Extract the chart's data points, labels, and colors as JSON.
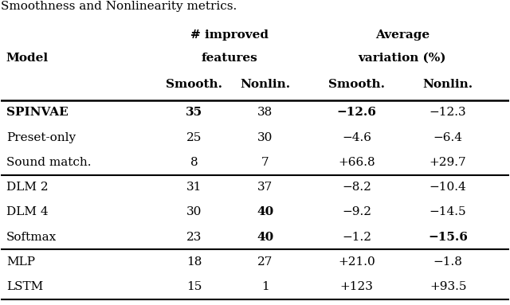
{
  "caption": "Smoothness and Nonlinearity metrics.",
  "col_headers_line1": [
    "",
    "# improved",
    "",
    "Average",
    ""
  ],
  "col_headers_line2": [
    "",
    "features",
    "",
    "variation (%)",
    ""
  ],
  "col_headers_line3": [
    "Model",
    "Smooth.",
    "Nonlin.",
    "Smooth.",
    "Nonlin."
  ],
  "rows": [
    {
      "model": "SPINVAE",
      "smooth_imp": "35",
      "nonlin_imp": "38",
      "smooth_var": "−12.6",
      "nonlin_var": "−12.3",
      "model_bold": true,
      "smooth_imp_bold": true,
      "nonlin_imp_bold": false,
      "smooth_var_bold": true,
      "nonlin_var_bold": false
    },
    {
      "model": "Preset-only",
      "smooth_imp": "25",
      "nonlin_imp": "30",
      "smooth_var": "−4.6",
      "nonlin_var": "−6.4",
      "model_bold": false,
      "smooth_imp_bold": false,
      "nonlin_imp_bold": false,
      "smooth_var_bold": false,
      "nonlin_var_bold": false
    },
    {
      "model": "Sound match.",
      "smooth_imp": "8",
      "nonlin_imp": "7",
      "smooth_var": "+66.8",
      "nonlin_var": "+29.7",
      "model_bold": false,
      "smooth_imp_bold": false,
      "nonlin_imp_bold": false,
      "smooth_var_bold": false,
      "nonlin_var_bold": false
    },
    {
      "model": "DLM 2",
      "smooth_imp": "31",
      "nonlin_imp": "37",
      "smooth_var": "−8.2",
      "nonlin_var": "−10.4",
      "model_bold": false,
      "smooth_imp_bold": false,
      "nonlin_imp_bold": false,
      "smooth_var_bold": false,
      "nonlin_var_bold": false
    },
    {
      "model": "DLM 4",
      "smooth_imp": "30",
      "nonlin_imp": "40",
      "smooth_var": "−9.2",
      "nonlin_var": "−14.5",
      "model_bold": false,
      "smooth_imp_bold": false,
      "nonlin_imp_bold": true,
      "smooth_var_bold": false,
      "nonlin_var_bold": false
    },
    {
      "model": "Softmax",
      "smooth_imp": "23",
      "nonlin_imp": "40",
      "smooth_var": "−1.2",
      "nonlin_var": "−15.6",
      "model_bold": false,
      "smooth_imp_bold": false,
      "nonlin_imp_bold": true,
      "smooth_var_bold": false,
      "nonlin_var_bold": true
    },
    {
      "model": "MLP",
      "smooth_imp": "18",
      "nonlin_imp": "27",
      "smooth_var": "+21.0",
      "nonlin_var": "−1.8",
      "model_bold": false,
      "smooth_imp_bold": false,
      "nonlin_imp_bold": false,
      "smooth_var_bold": false,
      "nonlin_var_bold": false
    },
    {
      "model": "LSTM",
      "smooth_imp": "15",
      "nonlin_imp": "1",
      "smooth_var": "+123",
      "nonlin_var": "+93.5",
      "model_bold": false,
      "smooth_imp_bold": false,
      "nonlin_imp_bold": false,
      "smooth_var_bold": false,
      "nonlin_var_bold": false
    }
  ],
  "dividers_after": [
    2,
    5
  ],
  "bg_color": "#ffffff",
  "text_color": "#000000",
  "font_size": 11,
  "header_font_size": 11
}
